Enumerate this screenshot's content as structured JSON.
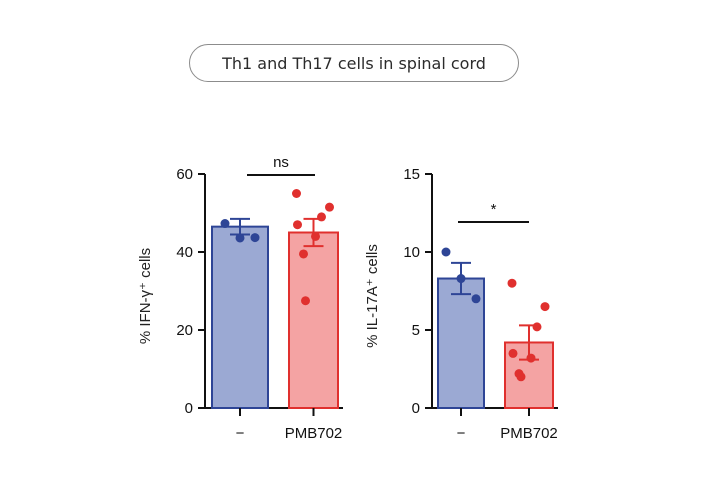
{
  "title": "Th1 and Th17 cells in spinal cord",
  "colors": {
    "control_fill": "#9ba9d3",
    "control_edge": "#2e4596",
    "treated_fill": "#f4a3a3",
    "treated_edge": "#e0302e"
  },
  "chart_data": [
    {
      "type": "bar",
      "ylabel": "% IFN-γ⁺ cells",
      "ylim": [
        0,
        60
      ],
      "yticks": [
        0,
        20,
        40,
        60
      ],
      "categories": [
        "−",
        "PMB702"
      ],
      "values": [
        46.5,
        45
      ],
      "sem": [
        2,
        3.5
      ],
      "points": [
        [
          47.3,
          43.6,
          43.7
        ],
        [
          55,
          51.5,
          49,
          47,
          44,
          39.5,
          27.5
        ]
      ],
      "significance": "ns",
      "grid": false
    },
    {
      "type": "bar",
      "ylabel": "% IL-17A⁺ cells",
      "ylim": [
        0,
        15
      ],
      "yticks": [
        0,
        5,
        10,
        15
      ],
      "categories": [
        "−",
        "PMB702"
      ],
      "values": [
        8.3,
        4.2
      ],
      "sem": [
        1.0,
        1.1
      ],
      "points": [
        [
          10,
          8.3,
          7
        ],
        [
          8,
          6.5,
          5.2,
          3.5,
          3.2,
          2.2,
          2
        ]
      ],
      "significance": "*",
      "grid": false
    }
  ]
}
